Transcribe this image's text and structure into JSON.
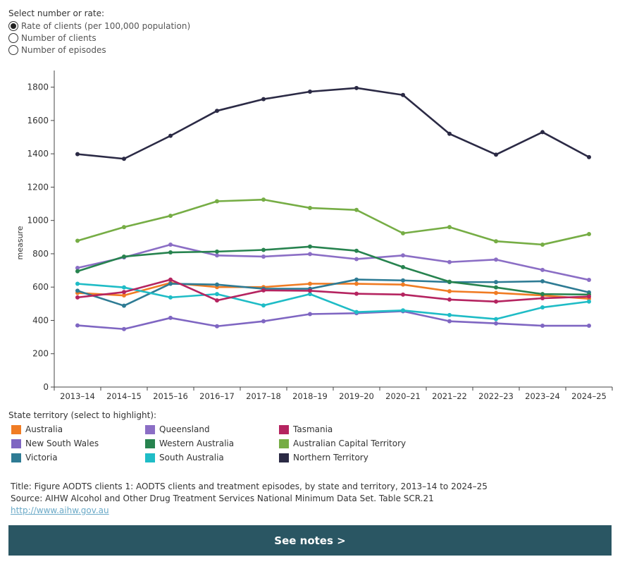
{
  "controls": {
    "title": "Select number or rate:",
    "options": [
      {
        "label": "Rate of clients (per 100,000 population)",
        "selected": true
      },
      {
        "label": "Number of clients",
        "selected": false
      },
      {
        "label": "Number of episodes",
        "selected": false
      }
    ]
  },
  "chart_data": {
    "type": "line",
    "title": "",
    "xlabel": "",
    "ylabel": "measure",
    "ylim": [
      0,
      1900
    ],
    "yticks": [
      0,
      200,
      400,
      600,
      800,
      1000,
      1200,
      1400,
      1600,
      1800
    ],
    "categories": [
      "2013–14",
      "2014–15",
      "2015–16",
      "2016–17",
      "2017–18",
      "2018–19",
      "2019–20",
      "2020–21",
      "2021–22",
      "2022–23",
      "2023–24",
      "2024–25"
    ],
    "series": [
      {
        "name": "Australia",
        "color": "#f07c24",
        "values": [
          565,
          550,
          625,
          600,
          600,
          620,
          620,
          615,
          575,
          565,
          550,
          530
        ]
      },
      {
        "name": "New South Wales",
        "color": "#7f66c2",
        "values": [
          370,
          348,
          415,
          365,
          395,
          438,
          443,
          455,
          395,
          382,
          368,
          368
        ]
      },
      {
        "name": "Victoria",
        "color": "#2e7b94",
        "values": [
          578,
          488,
          620,
          615,
          590,
          590,
          645,
          640,
          630,
          630,
          635,
          568
        ]
      },
      {
        "name": "Queensland",
        "color": "#8b6ec5",
        "values": [
          715,
          778,
          855,
          790,
          783,
          798,
          768,
          790,
          750,
          765,
          703,
          643
        ]
      },
      {
        "name": "Western Australia",
        "color": "#27834f",
        "values": [
          695,
          783,
          808,
          813,
          823,
          843,
          818,
          720,
          632,
          598,
          558,
          555
        ]
      },
      {
        "name": "South Australia",
        "color": "#1fbcc6",
        "values": [
          620,
          598,
          538,
          558,
          490,
          558,
          450,
          460,
          432,
          408,
          478,
          513
        ]
      },
      {
        "name": "Tasmania",
        "color": "#b52460",
        "values": [
          538,
          570,
          645,
          520,
          580,
          578,
          560,
          555,
          525,
          513,
          533,
          543
        ]
      },
      {
        "name": "Australian Capital Territory",
        "color": "#76ad45",
        "values": [
          878,
          960,
          1028,
          1115,
          1125,
          1075,
          1063,
          923,
          960,
          875,
          855,
          918
        ]
      },
      {
        "name": "Northern Territory",
        "color": "#2b2a45",
        "values": [
          1398,
          1370,
          1508,
          1658,
          1728,
          1773,
          1795,
          1753,
          1520,
          1395,
          1530,
          1380
        ]
      }
    ]
  },
  "legend": {
    "title": "State territory (select to highlight):",
    "items": [
      {
        "label": "Australia",
        "color": "#f07c24"
      },
      {
        "label": "New South Wales",
        "color": "#7f66c2"
      },
      {
        "label": "Victoria",
        "color": "#2e7b94"
      },
      {
        "label": "Queensland",
        "color": "#8b6ec5"
      },
      {
        "label": "Western Australia",
        "color": "#27834f"
      },
      {
        "label": "South Australia",
        "color": "#1fbcc6"
      },
      {
        "label": "Tasmania",
        "color": "#b52460"
      },
      {
        "label": "Australian Capital Territory",
        "color": "#76ad45"
      },
      {
        "label": "Northern Territory",
        "color": "#2b2a45"
      }
    ]
  },
  "footer": {
    "title_line": "Title: Figure AODTS clients 1: AODTS clients and treatment episodes, by state and territory, 2013–14 to 2024–25",
    "source_line": "Source: AIHW Alcohol and Other Drug Treatment Services National Minimum Data Set. Table SCR.21",
    "link": "http://www.aihw.gov.au"
  },
  "notes_button": {
    "label": "See notes >"
  }
}
